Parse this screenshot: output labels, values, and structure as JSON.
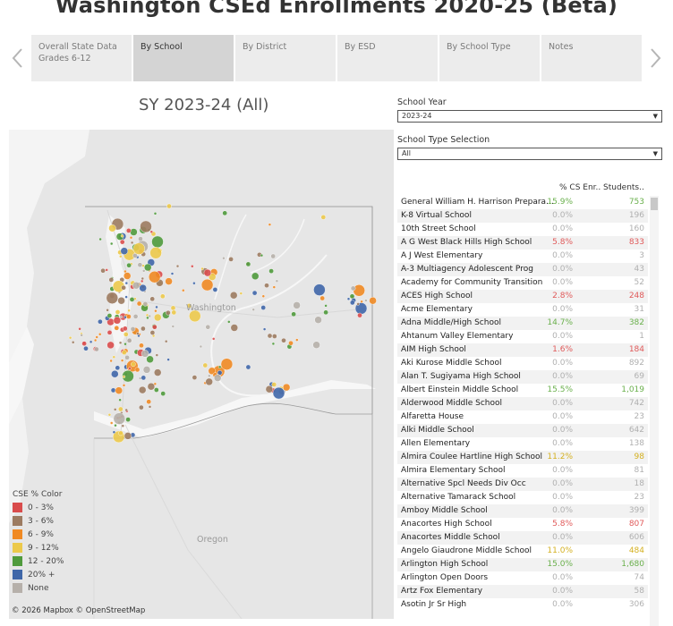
{
  "header": {
    "title": "Washington CSEd Enrollments 2020-25 (Beta)"
  },
  "nav": {
    "tabs": [
      {
        "label": "Overall State Data\nGrades 6-12",
        "active": false
      },
      {
        "label": "By School",
        "active": true
      },
      {
        "label": "By District",
        "active": false
      },
      {
        "label": "By ESD",
        "active": false
      },
      {
        "label": "By School Type",
        "active": false
      },
      {
        "label": "Notes",
        "active": false
      }
    ],
    "prev_icon": "chevron-left-icon",
    "next_icon": "chevron-right-icon"
  },
  "map_panel": {
    "title": "SY 2023-24 (All)",
    "labels": {
      "washington": "Washington",
      "oregon": "Oregon"
    },
    "attribution": "© 2026 Mapbox  © OpenStreetMap",
    "legend": {
      "title": "CSE % Color",
      "items": [
        {
          "label": "0 - 3%",
          "color": "#d94c4c"
        },
        {
          "label": "3 - 6%",
          "color": "#9c7b61"
        },
        {
          "label": "6 - 9%",
          "color": "#f08a24"
        },
        {
          "label": "9 - 12%",
          "color": "#ecc94b"
        },
        {
          "label": "12 - 20%",
          "color": "#4f9a3c"
        },
        {
          "label": "20% +",
          "color": "#3f66a8"
        },
        {
          "label": "None",
          "color": "#b6b0aa"
        }
      ]
    }
  },
  "filters": {
    "school_year": {
      "label": "School Year",
      "value": "2023-24"
    },
    "school_type": {
      "label": "School Type Selection",
      "value": "All"
    }
  },
  "table": {
    "headers": {
      "pct": "% CS Enr..",
      "students": "Students.."
    },
    "colors": {
      "green": "#6ab04c",
      "gray": "#b0b0b0",
      "red": "#e05a5a",
      "orange": "#e6a41a",
      "yellow": "#d4b020"
    },
    "rows": [
      {
        "name": "General William H. Harrison Preparato..",
        "pct": "15.9%",
        "students": "753",
        "tone": "green"
      },
      {
        "name": "K-8 Virtual School",
        "pct": "0.0%",
        "students": "196",
        "tone": "gray"
      },
      {
        "name": "10th Street School",
        "pct": "0.0%",
        "students": "160",
        "tone": "gray"
      },
      {
        "name": "A G West Black Hills High School",
        "pct": "5.8%",
        "students": "833",
        "tone": "red"
      },
      {
        "name": "A J West Elementary",
        "pct": "0.0%",
        "students": "3",
        "tone": "gray"
      },
      {
        "name": "A-3 Multiagency Adolescent Prog",
        "pct": "0.0%",
        "students": "43",
        "tone": "gray"
      },
      {
        "name": "Academy for Community Transition",
        "pct": "0.0%",
        "students": "52",
        "tone": "gray"
      },
      {
        "name": "ACES High School",
        "pct": "2.8%",
        "students": "248",
        "tone": "red"
      },
      {
        "name": "Acme Elementary",
        "pct": "0.0%",
        "students": "31",
        "tone": "gray"
      },
      {
        "name": "Adna Middle/High School",
        "pct": "14.7%",
        "students": "382",
        "tone": "green"
      },
      {
        "name": "Ahtanum Valley Elementary",
        "pct": "0.0%",
        "students": "1",
        "tone": "gray"
      },
      {
        "name": "AIM High School",
        "pct": "1.6%",
        "students": "184",
        "tone": "red"
      },
      {
        "name": "Aki Kurose Middle School",
        "pct": "0.0%",
        "students": "892",
        "tone": "gray"
      },
      {
        "name": "Alan T. Sugiyama High School",
        "pct": "0.0%",
        "students": "69",
        "tone": "gray"
      },
      {
        "name": "Albert Einstein Middle School",
        "pct": "15.5%",
        "students": "1,019",
        "tone": "green"
      },
      {
        "name": "Alderwood Middle School",
        "pct": "0.0%",
        "students": "742",
        "tone": "gray"
      },
      {
        "name": "Alfaretta House",
        "pct": "0.0%",
        "students": "23",
        "tone": "gray"
      },
      {
        "name": "Alki Middle School",
        "pct": "0.0%",
        "students": "642",
        "tone": "gray"
      },
      {
        "name": "Allen Elementary",
        "pct": "0.0%",
        "students": "138",
        "tone": "gray"
      },
      {
        "name": "Almira Coulee Hartline High School",
        "pct": "11.2%",
        "students": "98",
        "tone": "yellow"
      },
      {
        "name": "Almira Elementary School",
        "pct": "0.0%",
        "students": "81",
        "tone": "gray"
      },
      {
        "name": "Alternative Spcl Needs Div Occ",
        "pct": "0.0%",
        "students": "18",
        "tone": "gray"
      },
      {
        "name": "Alternative Tamarack School",
        "pct": "0.0%",
        "students": "23",
        "tone": "gray"
      },
      {
        "name": "Amboy Middle School",
        "pct": "0.0%",
        "students": "399",
        "tone": "gray"
      },
      {
        "name": "Anacortes High School",
        "pct": "5.8%",
        "students": "807",
        "tone": "red"
      },
      {
        "name": "Anacortes Middle School",
        "pct": "0.0%",
        "students": "606",
        "tone": "gray"
      },
      {
        "name": "Angelo Giaudrone Middle School",
        "pct": "11.0%",
        "students": "484",
        "tone": "yellow"
      },
      {
        "name": "Arlington High School",
        "pct": "15.0%",
        "students": "1,680",
        "tone": "green"
      },
      {
        "name": "Arlington Open Doors",
        "pct": "0.0%",
        "students": "74",
        "tone": "gray"
      },
      {
        "name": "Artz Fox Elementary",
        "pct": "0.0%",
        "students": "58",
        "tone": "gray"
      },
      {
        "name": "Asotin Jr Sr High",
        "pct": "0.0%",
        "students": "306",
        "tone": "gray"
      }
    ]
  }
}
